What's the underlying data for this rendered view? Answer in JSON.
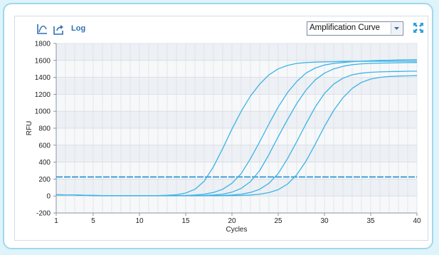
{
  "toolbar": {
    "chart_icon": "axis-chart-icon",
    "export_icon": "export-icon",
    "log_label": "Log",
    "dropdown_value": "Amplification Curve",
    "expand_icon": "expand-icon",
    "accent": "#2f6fb5"
  },
  "chart_data": {
    "type": "line",
    "xlabel": "Cycles",
    "ylabel": "RFU",
    "xlim": [
      1,
      40
    ],
    "ylim": [
      -200,
      1800
    ],
    "xticks": [
      1,
      5,
      10,
      15,
      20,
      25,
      30,
      35,
      40
    ],
    "yticks": [
      -200,
      0,
      200,
      400,
      600,
      800,
      1000,
      1200,
      1400,
      1600,
      1800
    ],
    "grid": true,
    "threshold": 225,
    "line_color": "#3bb3e6",
    "threshold_color": "#1f8fd0",
    "series": [
      {
        "values": [
          14,
          13,
          11,
          8,
          6,
          5,
          5,
          4,
          4,
          4,
          4,
          5,
          8,
          15,
          35,
          80,
          175,
          345,
          560,
          790,
          1000,
          1180,
          1320,
          1430,
          1500,
          1540,
          1565,
          1575,
          1580,
          1583,
          1585,
          1587,
          1588,
          1589,
          1590,
          1590,
          1590,
          1590,
          1590,
          1590
        ]
      },
      {
        "values": [
          14,
          13,
          11,
          8,
          6,
          5,
          5,
          4,
          4,
          4,
          4,
          4,
          4,
          5,
          7,
          12,
          22,
          42,
          80,
          150,
          265,
          440,
          640,
          850,
          1050,
          1220,
          1350,
          1450,
          1510,
          1545,
          1565,
          1575,
          1585,
          1590,
          1595,
          1600,
          1602,
          1605,
          1607,
          1608
        ]
      },
      {
        "values": [
          14,
          13,
          11,
          8,
          6,
          5,
          5,
          4,
          4,
          4,
          4,
          4,
          4,
          4,
          4,
          5,
          7,
          12,
          22,
          45,
          90,
          170,
          300,
          490,
          700,
          900,
          1090,
          1250,
          1370,
          1450,
          1500,
          1530,
          1550,
          1560,
          1565,
          1568,
          1570,
          1572,
          1574,
          1575
        ]
      },
      {
        "values": [
          14,
          13,
          11,
          8,
          6,
          5,
          5,
          4,
          4,
          4,
          4,
          4,
          4,
          4,
          4,
          4,
          4,
          5,
          7,
          12,
          22,
          42,
          80,
          150,
          265,
          440,
          640,
          850,
          1050,
          1210,
          1320,
          1390,
          1430,
          1450,
          1460,
          1465,
          1468,
          1470,
          1472,
          1473
        ]
      },
      {
        "values": [
          14,
          13,
          11,
          8,
          6,
          5,
          5,
          4,
          4,
          4,
          4,
          4,
          4,
          4,
          4,
          4,
          4,
          4,
          4,
          5,
          7,
          12,
          22,
          40,
          75,
          140,
          250,
          410,
          610,
          820,
          1010,
          1160,
          1270,
          1340,
          1380,
          1400,
          1410,
          1415,
          1418,
          1420
        ]
      }
    ]
  }
}
